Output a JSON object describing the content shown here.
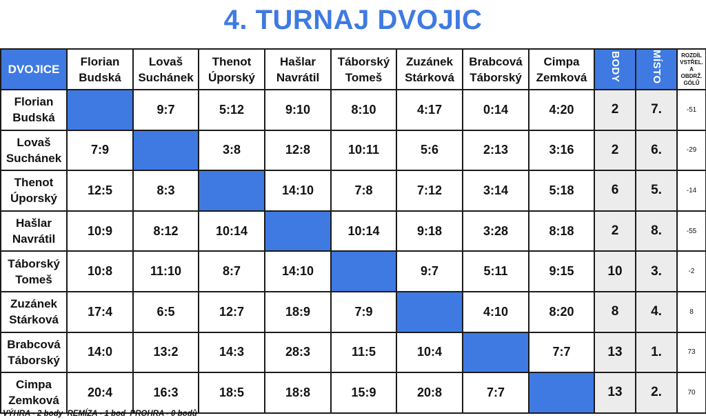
{
  "title": "4. TURNAJ DVOJIC",
  "headers": {
    "pairs": "DVOJICE",
    "points": "BODY",
    "place": "MÍSTO",
    "diff": "ROZDÍL VSTŘEL. A OBDRŽ. GÓLŮ"
  },
  "teams": [
    {
      "line1": "Florian",
      "line2": "Budská"
    },
    {
      "line1": "Lovaš",
      "line2": "Suchánek"
    },
    {
      "line1": "Thenot",
      "line2": "Úporský"
    },
    {
      "line1": "Hašlar",
      "line2": "Navrátil"
    },
    {
      "line1": "Táborský",
      "line2": "Tomeš"
    },
    {
      "line1": "Zuzánek",
      "line2": "Stárková"
    },
    {
      "line1": "Brabcová",
      "line2": "Táborský"
    },
    {
      "line1": "Cimpa",
      "line2": "Zemková"
    }
  ],
  "rows": [
    {
      "scores": [
        "",
        "9:7",
        "5:12",
        "9:10",
        "8:10",
        "4:17",
        "0:14",
        "4:20"
      ],
      "points": "2",
      "place": "7.",
      "diff": "-51"
    },
    {
      "scores": [
        "7:9",
        "",
        "3:8",
        "12:8",
        "10:11",
        "5:6",
        "2:13",
        "3:16"
      ],
      "points": "2",
      "place": "6.",
      "diff": "-29"
    },
    {
      "scores": [
        "12:5",
        "8:3",
        "",
        "14:10",
        "7:8",
        "7:12",
        "3:14",
        "5:18"
      ],
      "points": "6",
      "place": "5.",
      "diff": "-14"
    },
    {
      "scores": [
        "10:9",
        "8:12",
        "10:14",
        "",
        "10:14",
        "9:18",
        "3:28",
        "8:18"
      ],
      "points": "2",
      "place": "8.",
      "diff": "-55"
    },
    {
      "scores": [
        "10:8",
        "11:10",
        "8:7",
        "14:10",
        "",
        "9:7",
        "5:11",
        "9:15"
      ],
      "points": "10",
      "place": "3.",
      "diff": "-2"
    },
    {
      "scores": [
        "17:4",
        "6:5",
        "12:7",
        "18:9",
        "7:9",
        "",
        "4:10",
        "8:20"
      ],
      "points": "8",
      "place": "4.",
      "diff": "8"
    },
    {
      "scores": [
        "14:0",
        "13:2",
        "14:3",
        "28:3",
        "11:5",
        "10:4",
        "",
        "7:7"
      ],
      "points": "13",
      "place": "1.",
      "diff": "73"
    },
    {
      "scores": [
        "20:4",
        "16:3",
        "18:5",
        "18:8",
        "15:9",
        "20:8",
        "7:7",
        ""
      ],
      "points": "13",
      "place": "2.",
      "diff": "70"
    }
  ],
  "footer": "VÝHRA - 2 body  REMÍZA - 1 bod  PROHRA - 0 bodů",
  "colors": {
    "accent": "#3f7ae3",
    "summary_bg": "#ececec"
  }
}
